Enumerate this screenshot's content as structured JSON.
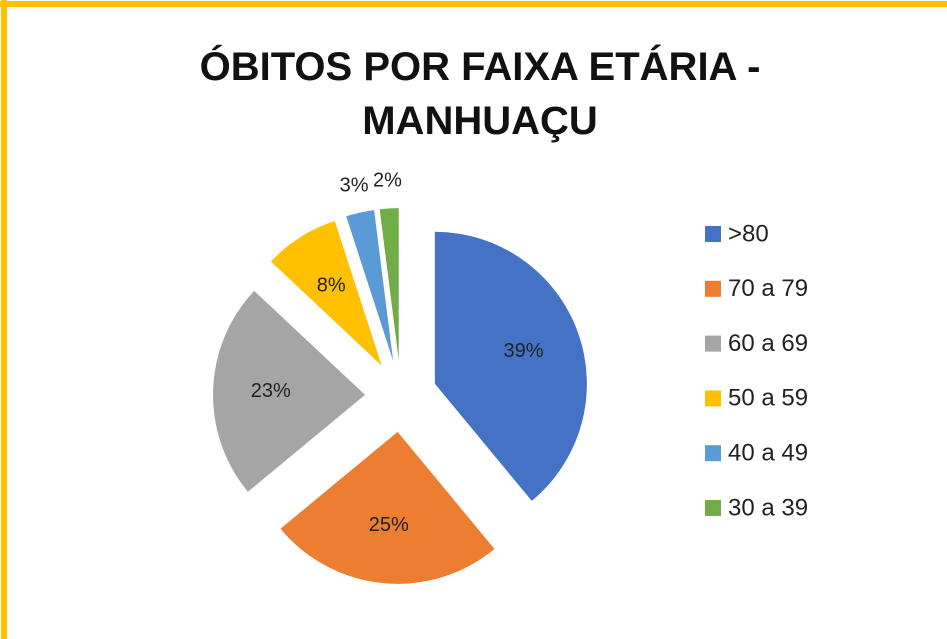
{
  "chart_data": {
    "type": "pie",
    "title": "ÓBITOS POR FAIXA ETÁRIA - MANHUAÇU",
    "categories": [
      ">80",
      "70 a 79",
      "60 a 69",
      "50 a 59",
      "40 a 49",
      "30 a 39"
    ],
    "values": [
      39,
      25,
      23,
      8,
      3,
      2
    ],
    "value_labels": [
      "39%",
      "25%",
      "23%",
      "8%",
      "3%",
      "2%"
    ],
    "colors": [
      "#4472c4",
      "#ed7d31",
      "#a5a5a5",
      "#ffc000",
      "#5b9bd5",
      "#70ad47"
    ],
    "exploded": true,
    "legend": "right"
  }
}
